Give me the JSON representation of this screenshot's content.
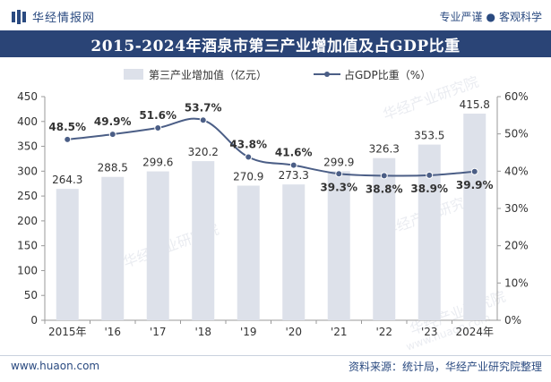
{
  "header": {
    "brand": "华经情报网",
    "motto_left": "专业严谨",
    "motto_sep": "●",
    "motto_right": "客观科学"
  },
  "watermark": {
    "text_cn": "华经产业研究院",
    "text_url": "www.huaon.com"
  },
  "footer": {
    "website": "www.huaon.com",
    "source": "资料来源：统计局，华经产业研究院整理"
  },
  "colors": {
    "bar": "#dde1ea",
    "line": "#4b5e86",
    "title_bg": "#2a4476",
    "brand": "#2a4a80"
  },
  "chart_data": {
    "type": "bar",
    "title": "2015-2024年酒泉市第三产业增加值及占GDP比重",
    "categories": [
      "2015年",
      "'16",
      "'17",
      "'18",
      "'19",
      "'20",
      "'21",
      "'22",
      "'23",
      "2024年"
    ],
    "series": [
      {
        "name": "第三产业增加值（亿元）",
        "type": "bar",
        "axis": "left",
        "values": [
          264.3,
          288.5,
          299.6,
          320.2,
          270.9,
          273.3,
          299.9,
          326.3,
          353.5,
          415.8
        ],
        "labels": [
          "264.3",
          "288.5",
          "299.6",
          "320.2",
          "270.9",
          "273.3",
          "299.9",
          "326.3",
          "353.5",
          "415.8"
        ]
      },
      {
        "name": "占GDP比重（%）",
        "type": "line",
        "axis": "right",
        "values": [
          48.5,
          49.9,
          51.6,
          53.7,
          43.8,
          41.6,
          39.3,
          38.8,
          38.9,
          39.9
        ],
        "labels": [
          "48.5%",
          "49.9%",
          "51.6%",
          "53.7%",
          "43.8%",
          "41.6%",
          "39.3%",
          "38.8%",
          "38.9%",
          "39.9%"
        ]
      }
    ],
    "y_left": {
      "min": 0,
      "max": 450,
      "ticks": [
        "0",
        "50",
        "100",
        "150",
        "200",
        "250",
        "300",
        "350",
        "400",
        "450"
      ]
    },
    "y_right": {
      "min": 0,
      "max": 60,
      "ticks": [
        "0%",
        "10%",
        "20%",
        "30%",
        "40%",
        "50%",
        "60%"
      ]
    },
    "legend_position": "top-center",
    "grid": false
  }
}
